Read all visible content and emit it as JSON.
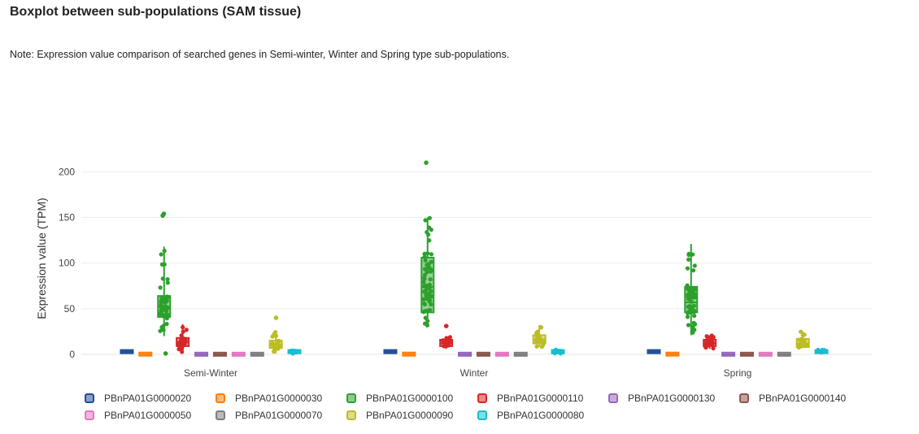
{
  "page": {
    "title": "Boxplot between sub-populations (SAM tissue)",
    "note": "Note: Expression value comparison of searched genes in Semi-winter, Winter and Spring type sub-populations."
  },
  "chart_data": {
    "type": "box",
    "title": "",
    "xlabel": "",
    "ylabel": "Expression value (TPM)",
    "ylim": [
      -8,
      212
    ],
    "yticks": [
      0,
      50,
      100,
      150,
      200
    ],
    "grid": true,
    "legend_position": "bottom",
    "categories": [
      "Semi-Winter",
      "Winter",
      "Spring"
    ],
    "series": [
      {
        "name": "PBnPA01G0000020",
        "color": "#1f4e96",
        "stats": [
          {
            "min": 1.5,
            "q1": 2.2,
            "median": 3,
            "q3": 3.8,
            "max": 4.5
          },
          {
            "min": 1.5,
            "q1": 2.2,
            "median": 3,
            "q3": 3.8,
            "max": 4.5
          },
          {
            "min": 1.5,
            "q1": 2.2,
            "median": 3,
            "q3": 3.8,
            "max": 4.5
          }
        ],
        "outliers": [
          [],
          [],
          []
        ]
      },
      {
        "name": "PBnPA01G0000030",
        "color": "#ff7f0e",
        "stats": [
          {
            "min": 0,
            "q1": 0,
            "median": 0.2,
            "q3": 0.5,
            "max": 0.8
          },
          {
            "min": 0,
            "q1": 0,
            "median": 0.2,
            "q3": 0.5,
            "max": 0.8
          },
          {
            "min": 0,
            "q1": 0,
            "median": 0.2,
            "q3": 0.5,
            "max": 0.8
          }
        ],
        "outliers": [
          [],
          [],
          []
        ]
      },
      {
        "name": "PBnPA01G0000100",
        "color": "#2ca02c",
        "stats": [
          {
            "min": 20,
            "q1": 41,
            "median": 52,
            "q3": 64,
            "max": 118
          },
          {
            "min": 30,
            "q1": 46,
            "median": 74,
            "q3": 106,
            "max": 150
          },
          {
            "min": 21,
            "q1": 46,
            "median": 57,
            "q3": 74,
            "max": 121
          }
        ],
        "outliers": [
          [
            154,
            152,
            1
          ],
          [
            210
          ],
          []
        ]
      },
      {
        "name": "PBnPA01G0000110",
        "color": "#d62728",
        "stats": [
          {
            "min": 2,
            "q1": 9,
            "median": 13,
            "q3": 18,
            "max": 33
          },
          {
            "min": 6,
            "q1": 9,
            "median": 12,
            "q3": 16,
            "max": 20
          },
          {
            "min": 6,
            "q1": 9,
            "median": 12,
            "q3": 16,
            "max": 21
          }
        ],
        "outliers": [
          [],
          [
            31
          ],
          []
        ]
      },
      {
        "name": "PBnPA01G0000130",
        "color": "#9467bd",
        "stats": [
          {
            "min": 0,
            "q1": 0,
            "median": 0,
            "q3": 0.3,
            "max": 0.6
          },
          {
            "min": 0,
            "q1": 0,
            "median": 0,
            "q3": 0.3,
            "max": 0.6
          },
          {
            "min": 0,
            "q1": 0,
            "median": 0,
            "q3": 0.3,
            "max": 0.6
          }
        ],
        "outliers": [
          [],
          [],
          []
        ]
      },
      {
        "name": "PBnPA01G0000140",
        "color": "#8c564b",
        "stats": [
          {
            "min": 0,
            "q1": 0,
            "median": 0,
            "q3": 0.3,
            "max": 0.6
          },
          {
            "min": 0,
            "q1": 0,
            "median": 0,
            "q3": 0.3,
            "max": 0.6
          },
          {
            "min": 0,
            "q1": 0,
            "median": 0,
            "q3": 0.3,
            "max": 0.6
          }
        ],
        "outliers": [
          [],
          [],
          []
        ]
      },
      {
        "name": "PBnPA01G0000050",
        "color": "#e377c2",
        "stats": [
          {
            "min": 0,
            "q1": 0,
            "median": 0,
            "q3": 0.3,
            "max": 0.6
          },
          {
            "min": 0,
            "q1": 0,
            "median": 0,
            "q3": 0.3,
            "max": 0.6
          },
          {
            "min": 0,
            "q1": 0,
            "median": 0,
            "q3": 0.3,
            "max": 0.6
          }
        ],
        "outliers": [
          [],
          [],
          []
        ]
      },
      {
        "name": "PBnPA01G0000070",
        "color": "#7f7f7f",
        "stats": [
          {
            "min": 0,
            "q1": 0,
            "median": 0,
            "q3": 0.3,
            "max": 0.6
          },
          {
            "min": 0,
            "q1": 0,
            "median": 0,
            "q3": 0.3,
            "max": 0.6
          },
          {
            "min": 0,
            "q1": 0,
            "median": 0,
            "q3": 0.3,
            "max": 0.6
          }
        ],
        "outliers": [
          [],
          [],
          []
        ]
      },
      {
        "name": "PBnPA01G0000090",
        "color": "#bcbd22",
        "stats": [
          {
            "min": 1,
            "q1": 7,
            "median": 10,
            "q3": 15,
            "max": 25
          },
          {
            "min": 8,
            "q1": 12,
            "median": 16,
            "q3": 21,
            "max": 32
          },
          {
            "min": 7,
            "q1": 8,
            "median": 12,
            "q3": 17,
            "max": 25
          }
        ],
        "outliers": [
          [
            40
          ],
          [],
          []
        ]
      },
      {
        "name": "PBnPA01G0000080",
        "color": "#17becf",
        "stats": [
          {
            "min": 1,
            "q1": 2,
            "median": 3,
            "q3": 4,
            "max": 6
          },
          {
            "min": 1,
            "q1": 2,
            "median": 3,
            "q3": 4,
            "max": 6
          },
          {
            "min": 1,
            "q1": 2,
            "median": 3,
            "q3": 4,
            "max": 5
          }
        ],
        "outliers": [
          [],
          [],
          []
        ]
      }
    ]
  }
}
